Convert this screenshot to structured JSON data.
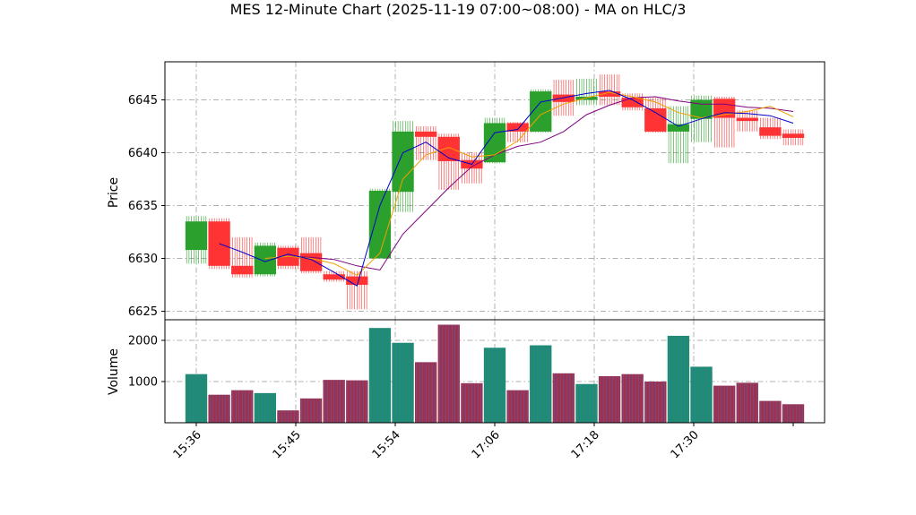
{
  "chart_data": [
    {
      "type": "candlestick",
      "title": "MES 12-Minute Chart (2025-11-19 07:00~08:00) - MA on HLC/3",
      "ylabel": "Price",
      "ylim": [
        6624.2,
        6648.6
      ],
      "yticks": [
        6625,
        6630,
        6635,
        6640,
        6645
      ],
      "xticks": [
        "15:36",
        "15:45",
        "15:54",
        "17:06",
        "17:18",
        "17:30"
      ],
      "grid": true,
      "colors": {
        "up": "#2ca02c",
        "down": "#ff3333",
        "ma_fast": "#0000cc",
        "ma_mid": "#f0a000",
        "ma_slow": "#800080"
      },
      "candles": [
        {
          "o": 6630.8,
          "h": 6634.0,
          "l": 6629.5,
          "c": 6633.5
        },
        {
          "o": 6633.5,
          "h": 6633.8,
          "l": 6629.0,
          "c": 6629.3
        },
        {
          "o": 6629.3,
          "h": 6632.0,
          "l": 6628.2,
          "c": 6628.5
        },
        {
          "o": 6628.5,
          "h": 6631.5,
          "l": 6628.3,
          "c": 6631.2
        },
        {
          "o": 6631.0,
          "h": 6631.2,
          "l": 6629.0,
          "c": 6629.3
        },
        {
          "o": 6630.5,
          "h": 6632.0,
          "l": 6628.6,
          "c": 6628.8
        },
        {
          "o": 6628.5,
          "h": 6628.8,
          "l": 6627.8,
          "c": 6628.0
        },
        {
          "o": 6628.3,
          "h": 6628.8,
          "l": 6625.2,
          "c": 6627.5
        },
        {
          "o": 6630.0,
          "h": 6636.6,
          "l": 6630.0,
          "c": 6636.4
        },
        {
          "o": 6636.3,
          "h": 6643.0,
          "l": 6634.4,
          "c": 6642.0
        },
        {
          "o": 6642.0,
          "h": 6642.5,
          "l": 6639.3,
          "c": 6641.5
        },
        {
          "o": 6641.5,
          "h": 6641.8,
          "l": 6636.5,
          "c": 6639.2
        },
        {
          "o": 6639.3,
          "h": 6640.0,
          "l": 6637.1,
          "c": 6638.5
        },
        {
          "o": 6639.1,
          "h": 6643.3,
          "l": 6639.0,
          "c": 6642.8
        },
        {
          "o": 6642.8,
          "h": 6642.9,
          "l": 6641.0,
          "c": 6642.0
        },
        {
          "o": 6642.0,
          "h": 6646.0,
          "l": 6641.9,
          "c": 6645.8
        },
        {
          "o": 6645.5,
          "h": 6646.9,
          "l": 6643.5,
          "c": 6644.8
        },
        {
          "o": 6645.0,
          "h": 6647.0,
          "l": 6644.5,
          "c": 6645.3
        },
        {
          "o": 6645.8,
          "h": 6647.4,
          "l": 6644.5,
          "c": 6645.3
        },
        {
          "o": 6645.2,
          "h": 6645.6,
          "l": 6644.0,
          "c": 6644.3
        },
        {
          "o": 6644.2,
          "h": 6645.2,
          "l": 6641.9,
          "c": 6642.0
        },
        {
          "o": 6642.0,
          "h": 6644.4,
          "l": 6639.0,
          "c": 6642.7
        },
        {
          "o": 6643.2,
          "h": 6645.4,
          "l": 6641.0,
          "c": 6645.0
        },
        {
          "o": 6645.1,
          "h": 6645.3,
          "l": 6640.5,
          "c": 6643.3
        },
        {
          "o": 6643.3,
          "h": 6644.0,
          "l": 6642.0,
          "c": 6643.0
        },
        {
          "o": 6642.4,
          "h": 6643.3,
          "l": 6641.3,
          "c": 6641.6
        },
        {
          "o": 6641.8,
          "h": 6642.2,
          "l": 6640.7,
          "c": 6641.4
        }
      ],
      "ma_fast": [
        null,
        6631.4,
        6630.6,
        6629.7,
        6630.4,
        6629.9,
        6628.7,
        6627.4,
        6635.0,
        6640.0,
        6641.0,
        6639.5,
        6638.9,
        6641.9,
        6642.2,
        6644.8,
        6645.2,
        6645.6,
        6645.9,
        6645.0,
        6643.8,
        6642.5,
        6643.2,
        6643.8,
        6643.7,
        6643.5,
        6642.8
      ],
      "ma_mid": [
        null,
        null,
        null,
        6630.0,
        6630.2,
        6630.0,
        6629.5,
        6628.4,
        6630.5,
        6637.5,
        6639.8,
        6640.5,
        6639.6,
        6639.8,
        6641.1,
        6643.6,
        6644.6,
        6645.2,
        6645.7,
        6645.3,
        6644.8,
        6643.8,
        6643.3,
        6643.6,
        6643.9,
        6644.4,
        6643.4
      ],
      "ma_slow": [
        null,
        null,
        null,
        null,
        6630.2,
        6630.1,
        6629.9,
        6629.3,
        6628.9,
        6632.3,
        6634.5,
        6636.7,
        6638.7,
        6639.8,
        6640.6,
        6641.0,
        6642.0,
        6643.6,
        6644.5,
        6645.2,
        6645.3,
        6644.9,
        6644.6,
        6644.6,
        6644.3,
        6644.2,
        6643.9
      ]
    },
    {
      "type": "bar",
      "ylabel": "Volume",
      "ylim": [
        0,
        2500
      ],
      "yticks": [
        1000,
        2000
      ],
      "grid": true,
      "values": [
        1180,
        680,
        790,
        720,
        300,
        590,
        1040,
        1030,
        2300,
        1940,
        1470,
        2380,
        960,
        1820,
        790,
        1880,
        1200,
        940,
        1130,
        1180,
        1000,
        2110,
        1360,
        900,
        970,
        530,
        450
      ],
      "colors": [
        "#1f8c6e",
        "#9e3050",
        "#9e3050",
        "#1f8c6e",
        "#9e3050",
        "#9e3050",
        "#9e3050",
        "#9e3050",
        "#1f8c6e",
        "#1f8c6e",
        "#9e3050",
        "#9e3050",
        "#9e3050",
        "#1f8c6e",
        "#9e3050",
        "#1f8c6e",
        "#9e3050",
        "#1f8c6e",
        "#9e3050",
        "#9e3050",
        "#9e3050",
        "#1f8c6e",
        "#1f8c6e",
        "#9e3050",
        "#9e3050",
        "#9e3050",
        "#9e3050"
      ]
    }
  ]
}
